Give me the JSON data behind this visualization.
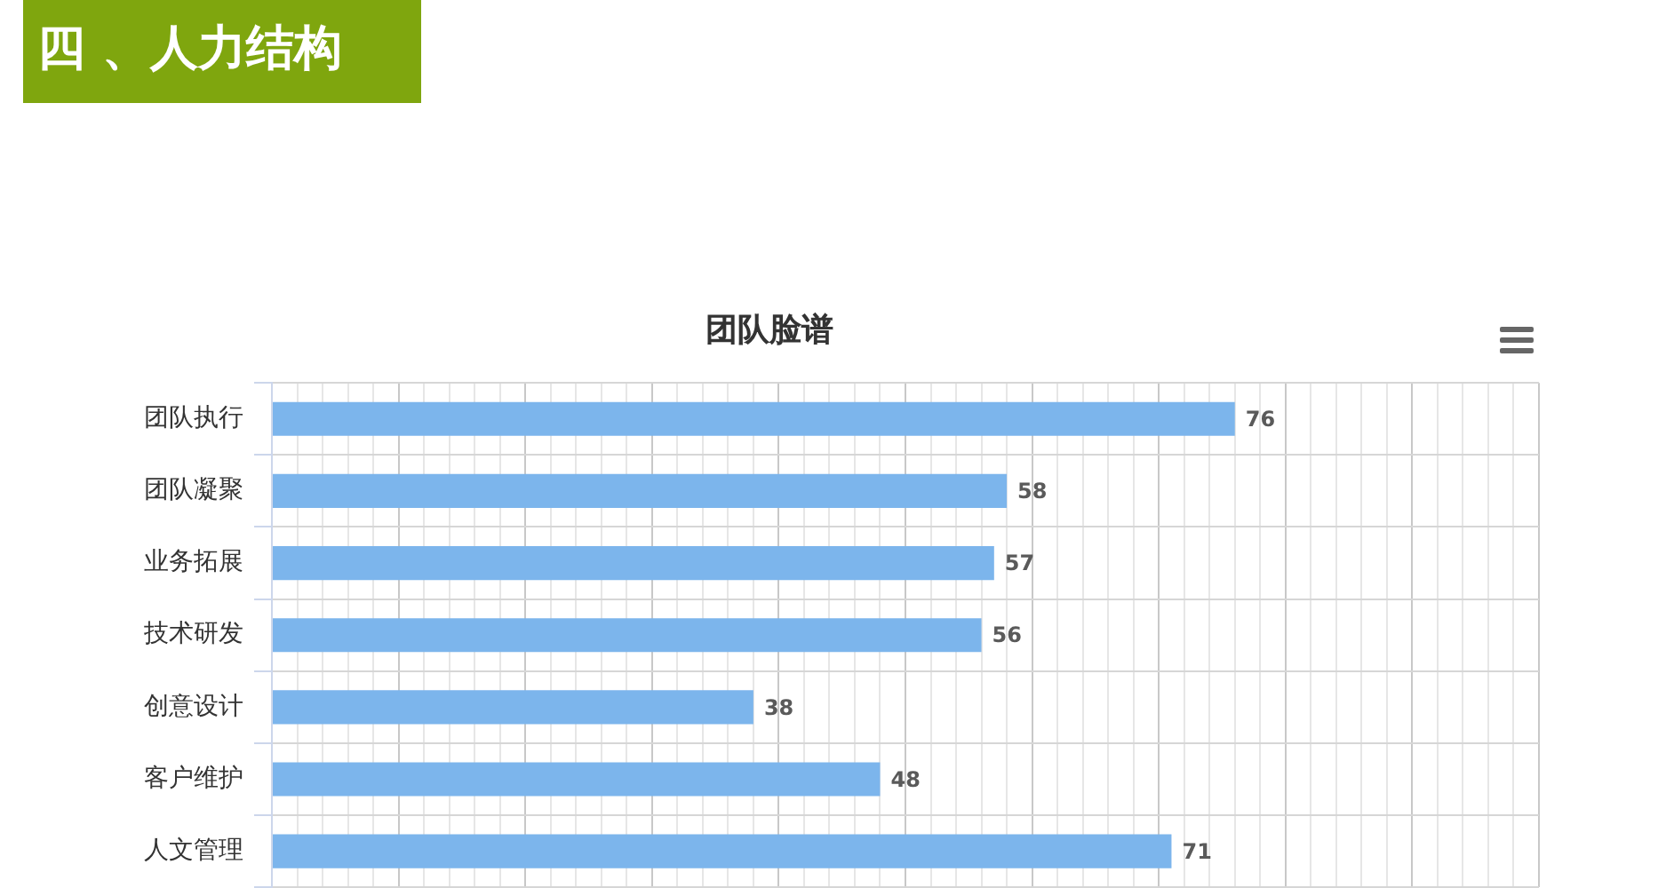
{
  "chart_data": {
    "type": "bar",
    "orientation": "horizontal",
    "title": "团队脸谱",
    "annotations": [
      "四 、人力结构"
    ],
    "categories": [
      "团队执行",
      "团队凝聚",
      "业务拓展",
      "技术研发",
      "创意设计",
      "客户维护",
      "人文管理"
    ],
    "values": [
      76,
      58,
      57,
      56,
      38,
      48,
      71
    ],
    "color": "#7cb5ec",
    "xlim": [
      0,
      100
    ],
    "xticks": [
      {
        "value": 0,
        "label": null
      },
      {
        "value": 2,
        "label": null
      },
      {
        "value": 4,
        "label": null
      },
      {
        "value": 6,
        "label": null
      },
      {
        "value": 8,
        "label": null
      },
      {
        "value": 10,
        "label": null
      },
      {
        "value": 12,
        "label": null
      },
      {
        "value": 14,
        "label": null
      },
      {
        "value": 16,
        "label": null
      },
      {
        "value": 18,
        "label": null
      },
      {
        "value": 20,
        "label": null
      },
      {
        "value": 22,
        "label": null
      },
      {
        "value": 24,
        "label": null
      },
      {
        "value": 26,
        "label": null
      },
      {
        "value": 28,
        "label": null
      },
      {
        "value": 30,
        "label": null
      },
      {
        "value": 32,
        "label": null
      },
      {
        "value": 34,
        "label": null
      },
      {
        "value": 36,
        "label": null
      },
      {
        "value": 38,
        "label": null
      },
      {
        "value": 40,
        "label": null
      },
      {
        "value": 42,
        "label": null
      },
      {
        "value": 44,
        "label": null
      },
      {
        "value": 46,
        "label": null
      },
      {
        "value": 48,
        "label": null
      },
      {
        "value": 50,
        "label": null
      },
      {
        "value": 52,
        "label": null
      },
      {
        "value": 54,
        "label": null
      },
      {
        "value": 56,
        "label": null
      },
      {
        "value": 58,
        "label": null
      },
      {
        "value": 60,
        "label": null
      },
      {
        "value": 62,
        "label": null
      },
      {
        "value": 64,
        "label": null
      },
      {
        "value": 66,
        "label": null
      },
      {
        "value": 68,
        "label": null
      },
      {
        "value": 70,
        "label": null
      },
      {
        "value": 72,
        "label": null
      },
      {
        "value": 74,
        "label": null
      },
      {
        "value": 76,
        "label": null
      },
      {
        "value": 78,
        "label": null
      },
      {
        "value": 80,
        "label": null
      },
      {
        "value": 82,
        "label": null
      },
      {
        "value": 84,
        "label": null
      },
      {
        "value": 86,
        "label": null
      },
      {
        "value": 88,
        "label": null
      },
      {
        "value": 90,
        "label": null
      },
      {
        "value": 92,
        "label": null
      },
      {
        "value": 94,
        "label": null
      },
      {
        "value": 96,
        "label": null
      },
      {
        "value": 98,
        "label": null
      },
      {
        "value": 100,
        "label": null
      }
    ],
    "grid": true,
    "tick_labels": "y",
    "data_labels": true
  }
}
